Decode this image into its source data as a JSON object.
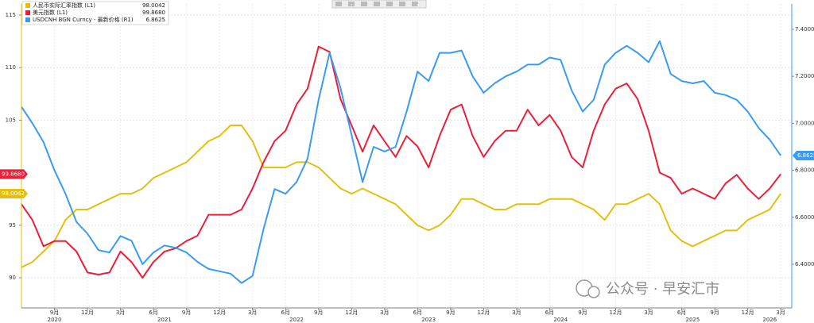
{
  "chart_data": {
    "type": "line",
    "x": [
      "2020-06",
      "2020-07",
      "2020-08",
      "2020-09",
      "2020-10",
      "2020-11",
      "2020-12",
      "2021-01",
      "2021-02",
      "2021-03",
      "2021-04",
      "2021-05",
      "2021-06",
      "2021-07",
      "2021-08",
      "2021-09",
      "2021-10",
      "2021-11",
      "2021-12",
      "2022-01",
      "2022-02",
      "2022-03",
      "2022-04",
      "2022-05",
      "2022-06",
      "2022-07",
      "2022-08",
      "2022-09",
      "2022-10",
      "2022-11",
      "2022-12",
      "2023-01",
      "2023-02",
      "2023-03",
      "2023-04",
      "2023-05",
      "2023-06",
      "2023-07",
      "2023-08",
      "2023-09",
      "2023-10",
      "2023-11",
      "2023-12",
      "2024-01",
      "2024-02",
      "2024-03",
      "2024-04",
      "2024-05",
      "2024-06",
      "2024-07",
      "2024-08",
      "2024-09",
      "2024-10",
      "2024-11",
      "2024-12",
      "2025-01",
      "2025-02",
      "2025-03",
      "2025-04",
      "2025-05",
      "2025-06",
      "2025-07",
      "2025-08",
      "2025-09",
      "2025-10",
      "2025-11",
      "2025-12",
      "2026-01",
      "2026-02",
      "2026-03"
    ],
    "xlim": [
      "2020-06",
      "2026-04"
    ],
    "xticks": [
      {
        "value": "2020-09",
        "label": "9月"
      },
      {
        "value": "2020-12",
        "label": "12月"
      },
      {
        "value": "2021-03",
        "label": "3月"
      },
      {
        "value": "2021-06",
        "label": "6月"
      },
      {
        "value": "2021-09",
        "label": "9月"
      },
      {
        "value": "2021-12",
        "label": "12月"
      },
      {
        "value": "2022-03",
        "label": "3月"
      },
      {
        "value": "2022-06",
        "label": "6月"
      },
      {
        "value": "2022-09",
        "label": "9月"
      },
      {
        "value": "2022-12",
        "label": "12月"
      },
      {
        "value": "2023-03",
        "label": "3月"
      },
      {
        "value": "2023-06",
        "label": "6月"
      },
      {
        "value": "2023-09",
        "label": "9月"
      },
      {
        "value": "2023-12",
        "label": "12月"
      },
      {
        "value": "2024-03",
        "label": "3月"
      },
      {
        "value": "2024-06",
        "label": "6月"
      },
      {
        "value": "2024-09",
        "label": "9月"
      },
      {
        "value": "2024-12",
        "label": "12月"
      },
      {
        "value": "2025-03",
        "label": "3月"
      },
      {
        "value": "2025-06",
        "label": "6月"
      },
      {
        "value": "2025-09",
        "label": "9月"
      },
      {
        "value": "2025-12",
        "label": "12月"
      },
      {
        "value": "2026-03",
        "label": "3月"
      }
    ],
    "year_labels": [
      {
        "value": "2020-09",
        "label": "2020"
      },
      {
        "value": "2021-07",
        "label": "2021"
      },
      {
        "value": "2022-07",
        "label": "2022"
      },
      {
        "value": "2023-07",
        "label": "2023"
      },
      {
        "value": "2024-07",
        "label": "2024"
      },
      {
        "value": "2025-07",
        "label": "2025"
      },
      {
        "value": "2026-02",
        "label": "2026"
      }
    ],
    "ylim": [
      87.13,
      116.06
    ],
    "yticks": [
      90,
      95,
      105,
      110,
      115
    ],
    "y2lim": [
      6.214,
      7.508
    ],
    "y2ticks": [
      {
        "value": 6.4,
        "label": "6.4000"
      },
      {
        "value": 6.6,
        "label": "6.6000"
      },
      {
        "value": 6.8,
        "label": "6.8000"
      },
      {
        "value": 7.0,
        "label": "7.0000"
      },
      {
        "value": 7.2,
        "label": "7.2000"
      },
      {
        "value": 7.4,
        "label": "7.4000"
      }
    ],
    "grid": true,
    "series": [
      {
        "name": "人民币实际汇率指数 (L1)",
        "color": "#e3c010",
        "last_label": "98.0042",
        "values": [
          91.0,
          91.5,
          92.5,
          93.5,
          95.5,
          96.5,
          96.5,
          97,
          97.5,
          98,
          98,
          98.5,
          99.5,
          100,
          100.5,
          101,
          102,
          103,
          103.5,
          104.5,
          104.5,
          103,
          100.5,
          100.5,
          100.5,
          101,
          101,
          100.5,
          99.5,
          98.5,
          98,
          98.5,
          98,
          97.5,
          97,
          96,
          95,
          94.5,
          95,
          96,
          97.5,
          97.5,
          97.0,
          96.5,
          96.5,
          97,
          97,
          97,
          97.5,
          97.5,
          97.5,
          97,
          96.5,
          95.5,
          97,
          97,
          97.5,
          98,
          97.0,
          94.5,
          93.5,
          93.0,
          93.5,
          94,
          94.5,
          94.5,
          95.5,
          96,
          96.5,
          98.0042
        ]
      },
      {
        "name": "美元指数 (L1)",
        "color": "#e8203a",
        "last_label": "99.8680",
        "values": [
          97.0,
          95.5,
          93,
          93.5,
          93.5,
          92.5,
          90.5,
          90.3,
          90.5,
          92.5,
          91.5,
          90.0,
          91.5,
          92.5,
          92.8,
          93.5,
          94.0,
          96.0,
          96.0,
          96.0,
          96.5,
          98.5,
          101,
          103,
          104,
          106.5,
          108,
          112,
          111.5,
          107,
          104.5,
          102,
          104.5,
          103,
          101.5,
          103.5,
          102.5,
          100.5,
          103.5,
          106,
          106.5,
          103.5,
          101.5,
          103,
          104,
          104,
          106,
          104.5,
          105.5,
          104,
          101.5,
          100.5,
          104,
          106.5,
          108,
          108.5,
          107,
          104,
          100,
          99.5,
          98,
          98.5,
          98,
          97.5,
          99,
          99.8,
          98.5,
          97.5,
          98.5,
          99.868
        ]
      },
      {
        "name": "USDCNH BGN Curncy - 最新价格 (R1)",
        "color": "#3a9bf0",
        "axis": "y2",
        "last_label": "6.8625",
        "values": [
          7.07,
          7.0,
          6.92,
          6.8,
          6.7,
          6.58,
          6.53,
          6.46,
          6.45,
          6.52,
          6.5,
          6.4,
          6.45,
          6.48,
          6.47,
          6.45,
          6.41,
          6.38,
          6.37,
          6.36,
          6.32,
          6.35,
          6.55,
          6.72,
          6.7,
          6.75,
          6.85,
          7.1,
          7.3,
          7.15,
          6.95,
          6.75,
          6.9,
          6.88,
          6.9,
          7.05,
          7.22,
          7.18,
          7.3,
          7.3,
          7.31,
          7.2,
          7.13,
          7.17,
          7.2,
          7.22,
          7.25,
          7.25,
          7.28,
          7.27,
          7.14,
          7.05,
          7.1,
          7.25,
          7.3,
          7.33,
          7.3,
          7.26,
          7.35,
          7.21,
          7.18,
          7.17,
          7.18,
          7.13,
          7.12,
          7.1,
          7.05,
          6.98,
          6.93,
          6.8625
        ]
      }
    ],
    "watermark": "公众号 · 早安汇市"
  }
}
